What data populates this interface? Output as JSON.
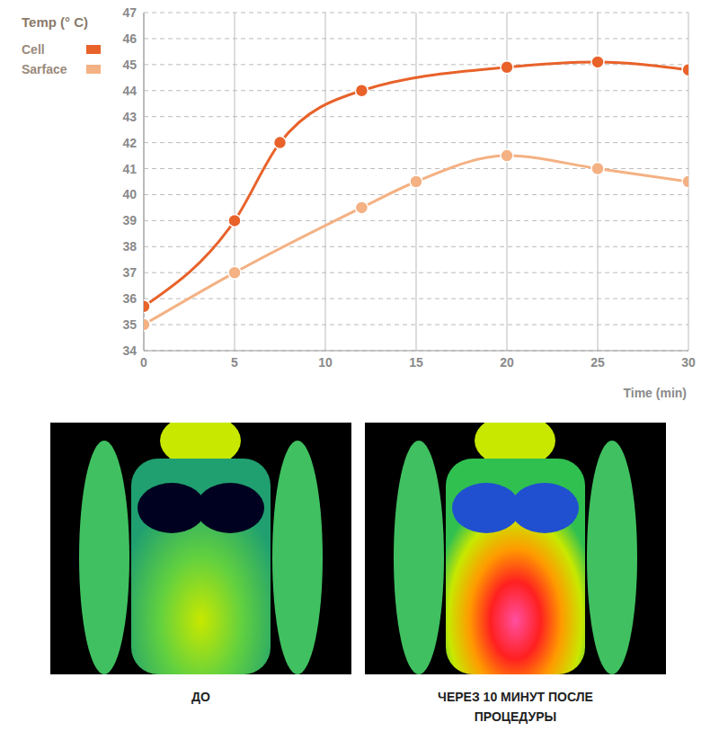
{
  "chart_data": {
    "type": "line",
    "y_label": "Temp (° C)",
    "x_label": "Time (min)",
    "series": [
      {
        "name": "Cell",
        "color": "#e8622a",
        "marker": "circle",
        "x": [
          0,
          5,
          7.5,
          12,
          20,
          25,
          30
        ],
        "values": [
          35.7,
          39,
          42,
          44,
          44.9,
          45.1,
          44.8
        ]
      },
      {
        "name": "Sarface",
        "color": "#f4b183",
        "marker": "circle",
        "x": [
          0,
          5,
          12,
          15,
          20,
          25,
          30
        ],
        "values": [
          35,
          37,
          39.5,
          40.5,
          41.5,
          41,
          40.5
        ]
      }
    ],
    "xlim": [
      0,
      30
    ],
    "xticks": [
      0,
      5,
      10,
      15,
      20,
      25,
      30
    ],
    "ylim": [
      34,
      47
    ],
    "yticks": [
      34,
      35,
      36,
      37,
      38,
      39,
      40,
      41,
      42,
      43,
      44,
      45,
      46,
      47
    ],
    "grid": true,
    "legend": "upper left"
  },
  "panels": [
    {
      "caption": "ДО"
    },
    {
      "caption": "ЧЕРЕЗ 10 МИНУТ ПОСЛЕ ПРОЦЕДУРЫ"
    }
  ]
}
